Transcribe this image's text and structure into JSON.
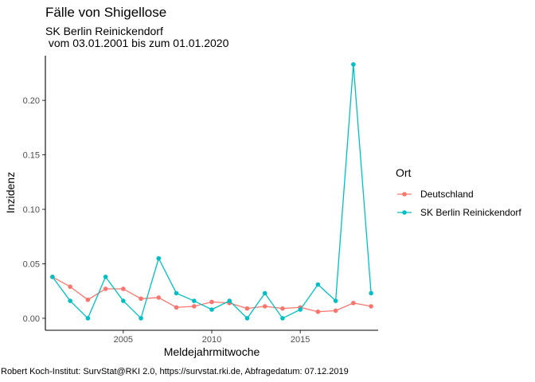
{
  "chart_data": {
    "type": "line",
    "title": "Fälle von Shigellose",
    "subtitle_line1": "SK Berlin Reinickendorf",
    "subtitle_line2": " vom 03.01.2001 bis zum 01.01.2020",
    "xlabel": "Meldejahrmitwoche",
    "ylabel": "Inzidenz",
    "caption": "Robert Koch-Institut: SurvStat@RKI 2.0, https://survstat.rki.de, Abfragedatum: 07.12.2019",
    "legend_title": "Ort",
    "legend_position": "right",
    "grid": false,
    "xlim": [
      2000.6,
      2019.4
    ],
    "ylim": [
      -0.011,
      0.241
    ],
    "x_ticks": [
      2005,
      2010,
      2015
    ],
    "y_ticks": [
      0.0,
      0.05,
      0.1,
      0.15,
      0.2
    ],
    "y_tick_labels": [
      "0.00",
      "0.05",
      "0.10",
      "0.15",
      "0.20"
    ],
    "x": [
      2001,
      2002,
      2003,
      2004,
      2005,
      2006,
      2007,
      2008,
      2009,
      2010,
      2011,
      2012,
      2013,
      2014,
      2015,
      2016,
      2017,
      2018,
      2019
    ],
    "series": [
      {
        "name": "Deutschland",
        "color": "#F8766D",
        "values": [
          0.038,
          0.029,
          0.017,
          0.027,
          0.027,
          0.018,
          0.019,
          0.01,
          0.011,
          0.015,
          0.014,
          0.009,
          0.011,
          0.009,
          0.01,
          0.006,
          0.007,
          0.014,
          0.011
        ]
      },
      {
        "name": "SK Berlin Reinickendorf",
        "color": "#00BFC4",
        "values": [
          0.038,
          0.016,
          0.0,
          0.038,
          0.016,
          0.0,
          0.055,
          0.023,
          0.016,
          0.008,
          0.016,
          0.0,
          0.023,
          0.0,
          0.008,
          0.031,
          0.016,
          0.233,
          0.023
        ]
      }
    ]
  }
}
